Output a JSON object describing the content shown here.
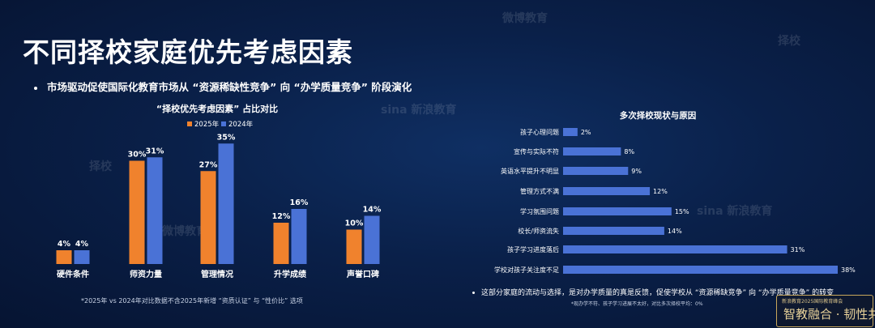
{
  "page": {
    "title": "不同择校家庭优先考虑因素",
    "bullet": "市场驱动促使国际化教育市场从 “资源稀缺性竞争” 向 “办学质量竞争” 阶段演化",
    "footnote": "*2025年 vs 2024年对比数据不含2025年新增 “资质认证” 与 “性价比” 选项",
    "bottom_bullet": "这部分家庭的流动与选择，是对办学质量的真是反馈，促使学校从 “资源稀缺竞争” 向 “办学质量竞争” 的转变",
    "bottom_sub": "*现办学不符、孩子学习进展不太好，对比多次择校平均：0%",
    "logo_sub": "新浪教育2025国际教育峰会",
    "logo_main": "智教融合 · 韧性共生",
    "watermarks": [
      "微博教育",
      "择校",
      "sina 新浪教育"
    ]
  },
  "chart_data": [
    {
      "type": "bar",
      "title": "“择校优先考虑因素” 占比对比",
      "categories": [
        "硬件条件",
        "师资力量",
        "管理情况",
        "升学成绩",
        "声誉口碑"
      ],
      "series": [
        {
          "name": "2025年",
          "values": [
            4,
            30,
            27,
            12,
            10
          ],
          "labels": [
            "4%",
            "30%",
            "27%",
            "12%",
            "10%"
          ],
          "color": "#f0822d"
        },
        {
          "name": "2024年",
          "values": [
            4,
            31,
            35,
            16,
            14
          ],
          "labels": [
            "4%",
            "31%",
            "35%",
            "16%",
            "14%"
          ],
          "color": "#4a72d6"
        }
      ],
      "legend": "top-center",
      "ylim": [
        0,
        40
      ]
    },
    {
      "type": "bar",
      "orientation": "horizontal",
      "title": "多次择校现状与原因",
      "categories": [
        "孩子心理问题",
        "宣传与实际不符",
        "英语水平提升不明显",
        "管理方式不满",
        "学习氛围问题",
        "校长/师资流失",
        "孩子学习进度落后",
        "学校对孩子关注度不足"
      ],
      "values": [
        2,
        8,
        9,
        12,
        15,
        14,
        31,
        38
      ],
      "labels": [
        "2%",
        "8%",
        "9%",
        "12%",
        "15%",
        "14%",
        "31%",
        "38%"
      ],
      "color": "#4a72d6",
      "xlim": [
        0,
        38
      ]
    }
  ]
}
